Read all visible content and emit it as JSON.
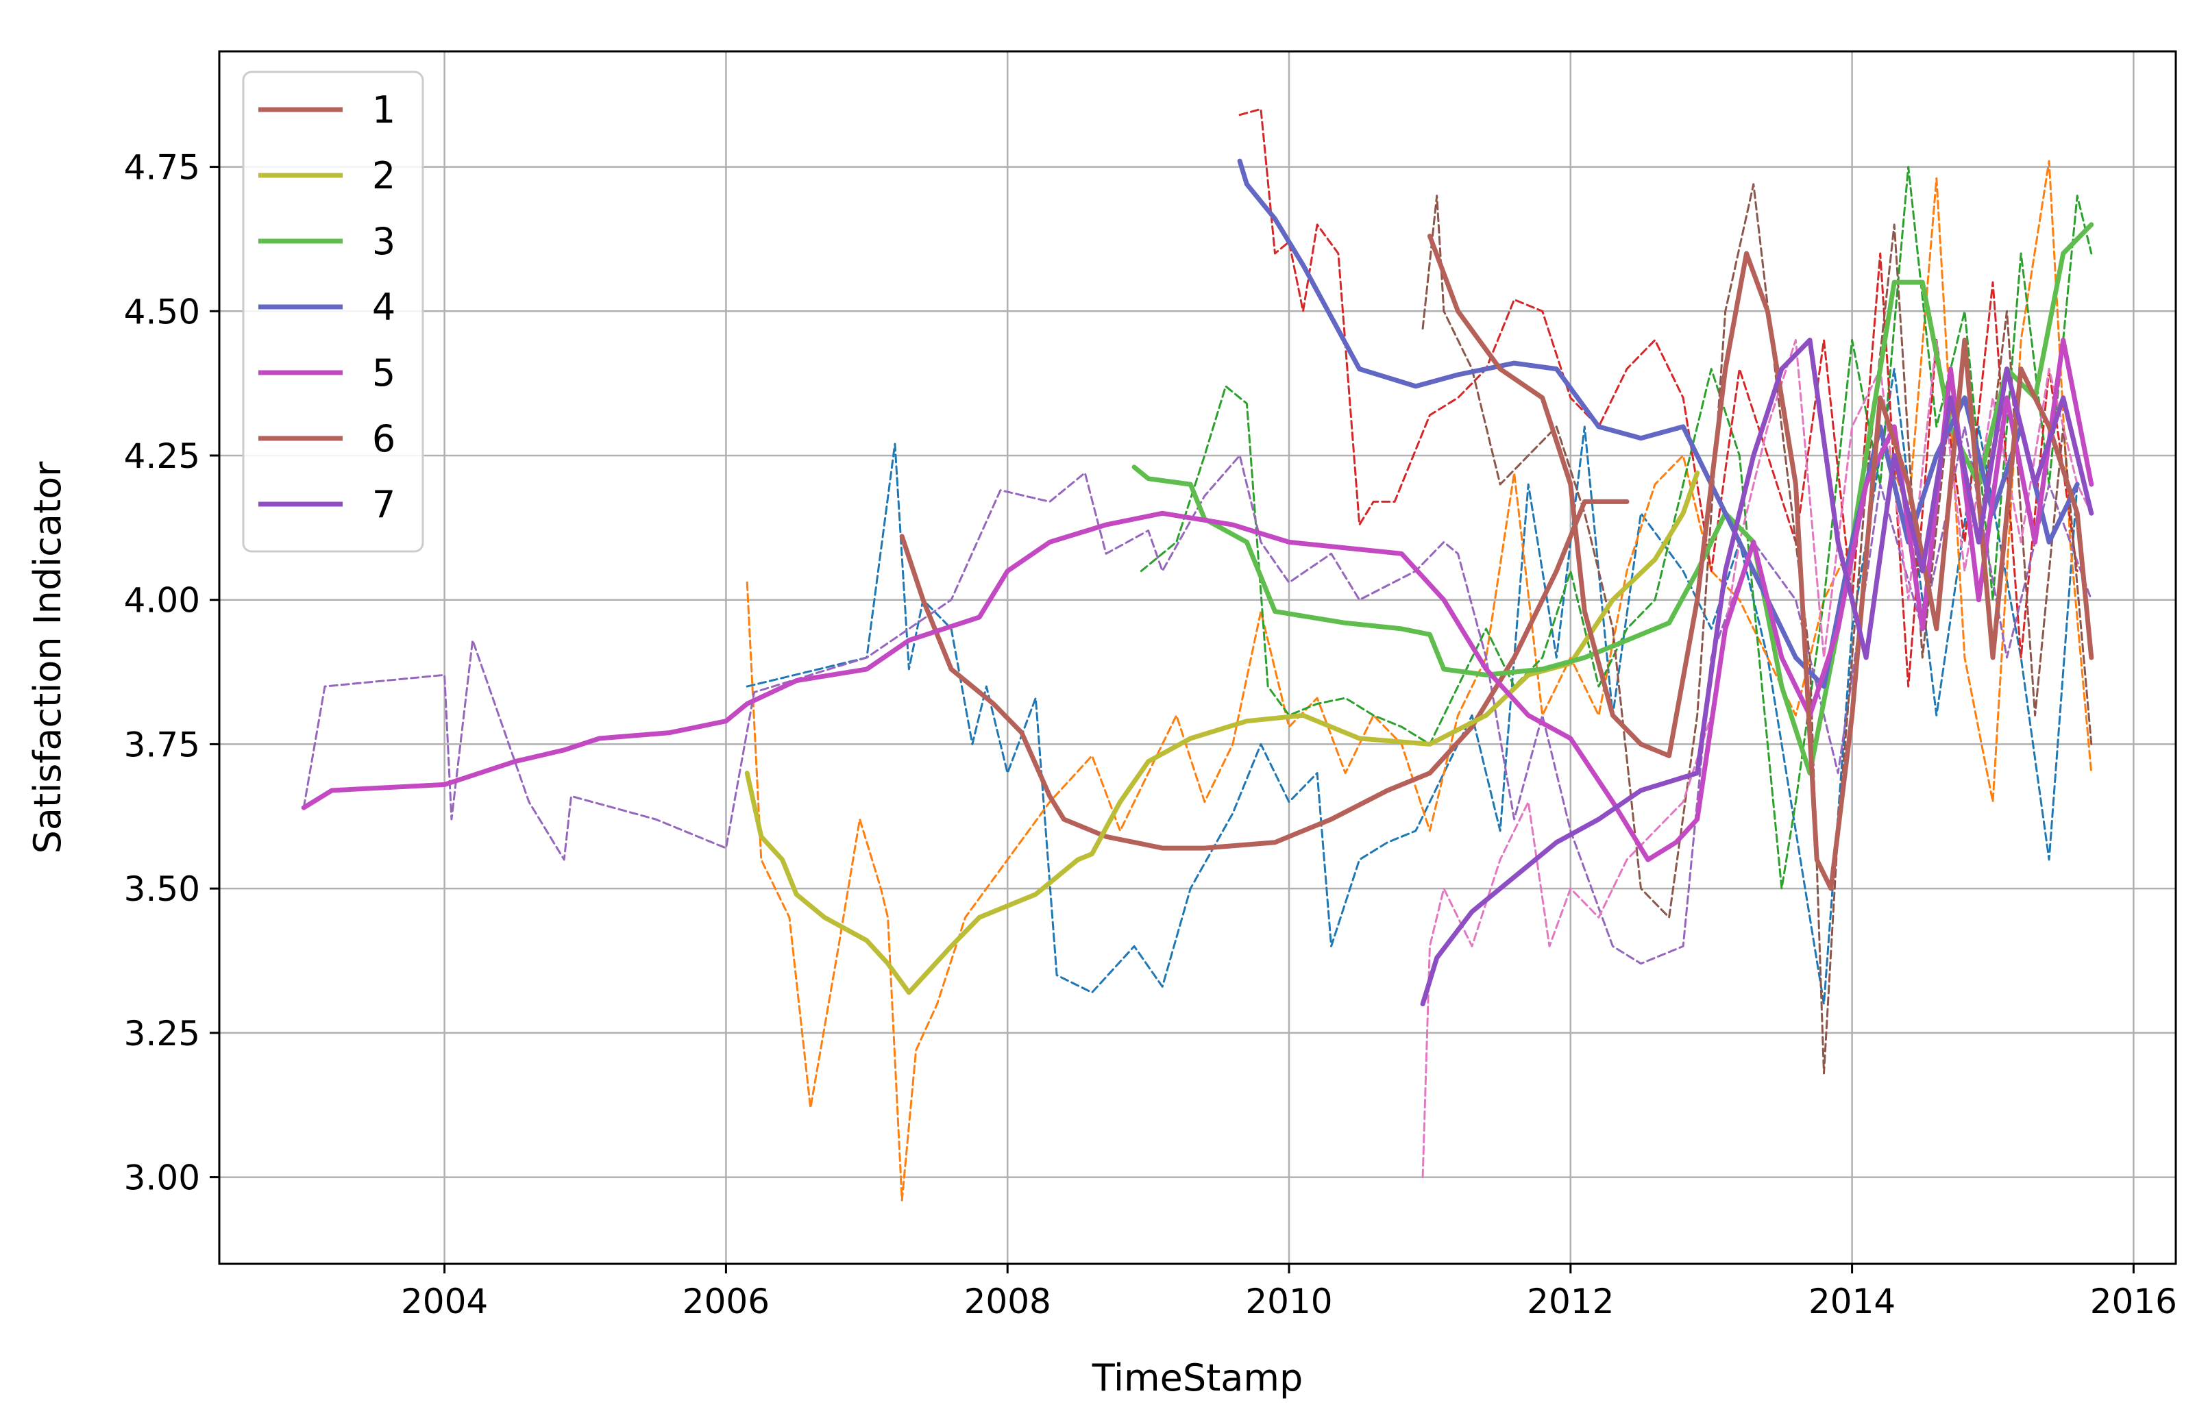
{
  "chart_data": {
    "type": "line",
    "title": "",
    "xlabel": "TimeStamp",
    "ylabel": "Satisfaction Indicator",
    "xlim": [
      2002.4,
      2016.3
    ],
    "ylim": [
      2.85,
      4.95
    ],
    "xticks": [
      2004,
      2006,
      2008,
      2010,
      2012,
      2014,
      2016
    ],
    "xtick_labels": [
      "2004",
      "2006",
      "2008",
      "2010",
      "2012",
      "2014",
      "2016"
    ],
    "yticks": [
      3.0,
      3.25,
      3.5,
      3.75,
      4.0,
      4.25,
      4.5,
      4.75
    ],
    "ytick_labels": [
      "3.00",
      "3.25",
      "3.50",
      "3.75",
      "4.00",
      "4.25",
      "4.50",
      "4.75"
    ],
    "grid": true,
    "legend_position": "top-left",
    "series": [
      {
        "name": "1",
        "style": "solid",
        "color": "#b5615a",
        "x": [
          2007.25,
          2007.4,
          2007.6,
          2007.9,
          2008.1,
          2008.3,
          2008.4,
          2008.7,
          2009.1,
          2009.4,
          2009.9,
          2010.3,
          2010.7,
          2011.0,
          2011.3,
          2011.6,
          2011.9,
          2012.1,
          2012.4
        ],
        "y": [
          4.11,
          4.0,
          3.88,
          3.82,
          3.77,
          3.66,
          3.62,
          3.59,
          3.57,
          3.57,
          3.58,
          3.62,
          3.67,
          3.7,
          3.78,
          3.9,
          4.05,
          4.17,
          4.17
        ]
      },
      {
        "name": "2",
        "style": "solid",
        "color": "#bcbd37",
        "x": [
          2006.15,
          2006.25,
          2006.4,
          2006.5,
          2006.7,
          2007.0,
          2007.15,
          2007.3,
          2007.6,
          2007.8,
          2008.2,
          2008.5,
          2008.6,
          2008.8,
          2009.0,
          2009.3,
          2009.7,
          2010.1,
          2010.5,
          2011.0,
          2011.4,
          2011.7,
          2012.0,
          2012.3,
          2012.6,
          2012.8,
          2012.9
        ],
        "y": [
          3.7,
          3.59,
          3.55,
          3.49,
          3.45,
          3.41,
          3.37,
          3.32,
          3.4,
          3.45,
          3.49,
          3.55,
          3.56,
          3.65,
          3.72,
          3.76,
          3.79,
          3.8,
          3.76,
          3.75,
          3.8,
          3.87,
          3.89,
          4.0,
          4.07,
          4.15,
          4.22
        ]
      },
      {
        "name": "3",
        "style": "solid",
        "color": "#5fbd4e",
        "x": [
          2008.9,
          2009.0,
          2009.3,
          2009.4,
          2009.7,
          2009.9,
          2010.4,
          2010.8,
          2011.0,
          2011.1,
          2011.4,
          2011.8,
          2012.1,
          2012.4,
          2012.7,
          2012.9,
          2013.1,
          2013.3,
          2013.5,
          2013.7,
          2013.9,
          2014.1,
          2014.3,
          2014.5,
          2014.7,
          2014.9,
          2015.1,
          2015.3,
          2015.5,
          2015.7
        ],
        "y": [
          4.23,
          4.21,
          4.2,
          4.14,
          4.1,
          3.98,
          3.96,
          3.95,
          3.94,
          3.88,
          3.87,
          3.88,
          3.9,
          3.93,
          3.96,
          4.05,
          4.15,
          4.1,
          3.85,
          3.7,
          3.95,
          4.25,
          4.55,
          4.55,
          4.3,
          4.2,
          4.4,
          4.35,
          4.6,
          4.65
        ]
      },
      {
        "name": "4",
        "style": "solid",
        "color": "#6267c4",
        "x": [
          2009.65,
          2009.7,
          2009.9,
          2010.1,
          2010.3,
          2010.5,
          2010.9,
          2011.2,
          2011.6,
          2011.9,
          2012.2,
          2012.5,
          2012.8,
          2013.0,
          2013.2,
          2013.4,
          2013.6,
          2013.8,
          2014.0,
          2014.2,
          2014.4,
          2014.6,
          2014.8,
          2015.0,
          2015.2,
          2015.4,
          2015.6
        ],
        "y": [
          4.76,
          4.72,
          4.66,
          4.58,
          4.49,
          4.4,
          4.37,
          4.39,
          4.41,
          4.4,
          4.3,
          4.28,
          4.3,
          4.2,
          4.1,
          4.0,
          3.9,
          3.85,
          4.1,
          4.3,
          4.1,
          4.25,
          4.35,
          4.15,
          4.3,
          4.1,
          4.2
        ]
      },
      {
        "name": "5",
        "style": "solid",
        "color": "#c349c3",
        "x": [
          2003.0,
          2003.2,
          2004.0,
          2004.5,
          2004.85,
          2005.1,
          2005.6,
          2006.0,
          2006.15,
          2006.5,
          2007.0,
          2007.3,
          2007.8,
          2008.0,
          2008.3,
          2008.7,
          2009.1,
          2009.6,
          2010.0,
          2010.4,
          2010.8,
          2011.1,
          2011.4,
          2011.7,
          2012.0,
          2012.3,
          2012.55,
          2012.75,
          2012.9,
          2013.1,
          2013.3,
          2013.5,
          2013.7,
          2013.9,
          2014.1,
          2014.3,
          2014.5,
          2014.7,
          2014.9,
          2015.1,
          2015.3,
          2015.5,
          2015.7
        ],
        "y": [
          3.64,
          3.67,
          3.68,
          3.72,
          3.74,
          3.76,
          3.77,
          3.79,
          3.82,
          3.86,
          3.88,
          3.93,
          3.97,
          4.05,
          4.1,
          4.13,
          4.15,
          4.13,
          4.1,
          4.09,
          4.08,
          4.0,
          3.88,
          3.8,
          3.76,
          3.65,
          3.55,
          3.58,
          3.62,
          3.95,
          4.1,
          3.9,
          3.8,
          3.95,
          4.2,
          4.3,
          3.95,
          4.4,
          4.0,
          4.35,
          4.1,
          4.45,
          4.2
        ]
      },
      {
        "name": "6",
        "style": "solid",
        "color": "#b5615a",
        "x": [
          2011.0,
          2011.2,
          2011.5,
          2011.8,
          2012.0,
          2012.1,
          2012.3,
          2012.5,
          2012.7,
          2012.9,
          2013.1,
          2013.25,
          2013.4,
          2013.6,
          2013.75,
          2013.85,
          2014.0,
          2014.2,
          2014.4,
          2014.6,
          2014.8,
          2015.0,
          2015.2,
          2015.4,
          2015.6,
          2015.7
        ],
        "y": [
          4.63,
          4.5,
          4.4,
          4.35,
          4.2,
          3.98,
          3.8,
          3.75,
          3.73,
          4.0,
          4.4,
          4.6,
          4.5,
          4.2,
          3.55,
          3.5,
          3.8,
          4.35,
          4.2,
          3.95,
          4.45,
          3.9,
          4.4,
          4.3,
          4.15,
          3.9
        ]
      },
      {
        "name": "7",
        "style": "solid",
        "color": "#8d4ec4",
        "x": [
          2010.95,
          2011.05,
          2011.3,
          2011.6,
          2011.9,
          2012.2,
          2012.5,
          2012.9,
          2013.1,
          2013.3,
          2013.5,
          2013.7,
          2013.9,
          2014.1,
          2014.3,
          2014.5,
          2014.7,
          2014.9,
          2015.1,
          2015.3,
          2015.5,
          2015.7
        ],
        "y": [
          3.3,
          3.38,
          3.46,
          3.52,
          3.58,
          3.62,
          3.67,
          3.7,
          4.05,
          4.25,
          4.4,
          4.45,
          4.1,
          3.9,
          4.25,
          4.05,
          4.35,
          4.1,
          4.4,
          4.2,
          4.35,
          4.15
        ]
      },
      {
        "name": "",
        "style": "dashed",
        "color": "#1f77b4",
        "x": [
          2006.15,
          2007.0,
          2007.2,
          2007.3,
          2007.4,
          2007.6,
          2007.75,
          2007.85,
          2008.0,
          2008.2,
          2008.35,
          2008.6,
          2008.9,
          2009.1,
          2009.3,
          2009.6,
          2009.8,
          2010.0,
          2010.2,
          2010.3,
          2010.5,
          2010.7,
          2010.9,
          2011.1,
          2011.3,
          2011.5,
          2011.7,
          2011.9,
          2012.1,
          2012.3,
          2012.5,
          2012.8,
          2013.0,
          2013.2,
          2013.4,
          2013.6,
          2013.8,
          2014.0,
          2014.3,
          2014.6,
          2014.9,
          2015.2,
          2015.4,
          2015.6
        ],
        "y": [
          3.85,
          3.9,
          4.27,
          3.88,
          4.0,
          3.95,
          3.75,
          3.85,
          3.7,
          3.83,
          3.35,
          3.32,
          3.4,
          3.33,
          3.5,
          3.63,
          3.75,
          3.65,
          3.7,
          3.4,
          3.55,
          3.58,
          3.6,
          3.7,
          3.8,
          3.6,
          4.2,
          3.9,
          4.3,
          3.8,
          4.15,
          4.05,
          3.95,
          4.1,
          3.9,
          3.6,
          3.3,
          3.95,
          4.4,
          3.8,
          4.3,
          3.9,
          3.55,
          4.2
        ]
      },
      {
        "name": "",
        "style": "dashed",
        "color": "#ff7f0e",
        "x": [
          2006.15,
          2006.25,
          2006.45,
          2006.6,
          2006.8,
          2006.95,
          2007.1,
          2007.15,
          2007.25,
          2007.35,
          2007.5,
          2007.7,
          2008.0,
          2008.3,
          2008.6,
          2008.8,
          2009.0,
          2009.2,
          2009.4,
          2009.6,
          2009.8,
          2010.0,
          2010.2,
          2010.4,
          2010.6,
          2010.8,
          2011.0,
          2011.2,
          2011.4,
          2011.6,
          2011.8,
          2012.0,
          2012.2,
          2012.4,
          2012.6,
          2012.8,
          2013.0,
          2013.2,
          2013.4,
          2013.6,
          2013.8,
          2014.0,
          2014.2,
          2014.4,
          2014.6,
          2014.8,
          2015.0,
          2015.2,
          2015.4,
          2015.55,
          2015.7
        ],
        "y": [
          4.03,
          3.55,
          3.45,
          3.12,
          3.4,
          3.62,
          3.5,
          3.45,
          2.96,
          3.22,
          3.3,
          3.45,
          3.55,
          3.65,
          3.73,
          3.6,
          3.7,
          3.8,
          3.65,
          3.75,
          3.98,
          3.78,
          3.83,
          3.7,
          3.8,
          3.75,
          3.6,
          3.8,
          3.9,
          4.22,
          3.8,
          3.9,
          3.8,
          4.05,
          4.2,
          4.25,
          4.05,
          4.0,
          3.9,
          3.8,
          4.0,
          4.1,
          4.3,
          4.15,
          4.73,
          3.9,
          3.65,
          4.45,
          4.76,
          4.1,
          3.7
        ]
      },
      {
        "name": "",
        "style": "dashed",
        "color": "#2ca02c",
        "x": [
          2008.95,
          2009.2,
          2009.4,
          2009.55,
          2009.7,
          2009.85,
          2010.0,
          2010.2,
          2010.4,
          2010.6,
          2010.8,
          2011.0,
          2011.2,
          2011.4,
          2011.6,
          2011.8,
          2012.0,
          2012.2,
          2012.4,
          2012.6,
          2012.8,
          2013.0,
          2013.2,
          2013.4,
          2013.5,
          2013.6,
          2013.8,
          2014.0,
          2014.2,
          2014.4,
          2014.6,
          2014.8,
          2015.0,
          2015.2,
          2015.4,
          2015.6,
          2015.7
        ],
        "y": [
          4.05,
          4.1,
          4.25,
          4.37,
          4.34,
          3.85,
          3.8,
          3.82,
          3.83,
          3.8,
          3.78,
          3.75,
          3.85,
          3.95,
          3.85,
          3.9,
          4.05,
          3.85,
          3.95,
          4.0,
          4.2,
          4.4,
          4.25,
          3.75,
          3.5,
          3.65,
          4.0,
          4.45,
          4.2,
          4.75,
          4.3,
          4.5,
          4.0,
          4.6,
          4.2,
          4.7,
          4.6
        ]
      },
      {
        "name": "",
        "style": "dashed",
        "color": "#d62728",
        "x": [
          2009.65,
          2009.8,
          2009.9,
          2010.0,
          2010.1,
          2010.2,
          2010.35,
          2010.5,
          2010.6,
          2010.75,
          2011.0,
          2011.2,
          2011.4,
          2011.6,
          2011.8,
          2012.0,
          2012.2,
          2012.4,
          2012.6,
          2012.8,
          2013.0,
          2013.2,
          2013.4,
          2013.6,
          2013.8,
          2014.0,
          2014.2,
          2014.4,
          2014.6,
          2014.8,
          2015.0,
          2015.2,
          2015.4,
          2015.6
        ],
        "y": [
          4.84,
          4.85,
          4.6,
          4.62,
          4.5,
          4.65,
          4.6,
          4.13,
          4.17,
          4.17,
          4.32,
          4.35,
          4.4,
          4.52,
          4.5,
          4.35,
          4.3,
          4.4,
          4.45,
          4.35,
          4.05,
          4.4,
          4.25,
          4.1,
          4.45,
          4.0,
          4.6,
          3.85,
          4.45,
          4.1,
          4.55,
          3.9,
          4.4,
          4.05
        ]
      },
      {
        "name": "",
        "style": "dashed",
        "color": "#9467bd",
        "x": [
          2003.0,
          2003.15,
          2004.0,
          2004.05,
          2004.2,
          2004.6,
          2004.85,
          2004.9,
          2005.5,
          2006.0,
          2006.2,
          2006.6,
          2007.0,
          2007.3,
          2007.6,
          2007.95,
          2008.3,
          2008.55,
          2008.7,
          2009.0,
          2009.1,
          2009.4,
          2009.65,
          2009.8,
          2010.0,
          2010.3,
          2010.5,
          2010.9,
          2011.1,
          2011.2,
          2011.4,
          2011.6,
          2011.8,
          2012.0,
          2012.3,
          2012.5,
          2012.8,
          2013.0,
          2013.3,
          2013.6,
          2013.9,
          2014.2,
          2014.5,
          2014.8,
          2015.1,
          2015.4,
          2015.7
        ],
        "y": [
          3.64,
          3.85,
          3.87,
          3.62,
          3.93,
          3.65,
          3.55,
          3.66,
          3.62,
          3.57,
          3.84,
          3.87,
          3.9,
          3.95,
          4.0,
          4.19,
          4.17,
          4.22,
          4.08,
          4.12,
          4.05,
          4.18,
          4.25,
          4.1,
          4.03,
          4.08,
          4.0,
          4.05,
          4.1,
          4.08,
          3.9,
          3.62,
          3.8,
          3.6,
          3.4,
          3.37,
          3.4,
          3.9,
          4.1,
          4.0,
          3.7,
          4.2,
          3.95,
          4.3,
          3.9,
          4.2,
          4.0
        ]
      },
      {
        "name": "",
        "style": "dashed",
        "color": "#8c564b",
        "x": [
          2010.95,
          2011.05,
          2011.1,
          2011.3,
          2011.5,
          2011.7,
          2011.9,
          2012.1,
          2012.3,
          2012.5,
          2012.7,
          2012.9,
          2013.1,
          2013.3,
          2013.5,
          2013.7,
          2013.8,
          2013.9,
          2014.1,
          2014.3,
          2014.5,
          2014.7,
          2014.9,
          2015.1,
          2015.3,
          2015.5,
          2015.7
        ],
        "y": [
          4.47,
          4.7,
          4.5,
          4.4,
          4.2,
          4.25,
          4.3,
          4.15,
          3.95,
          3.5,
          3.45,
          3.8,
          4.5,
          4.72,
          4.3,
          3.9,
          3.18,
          3.6,
          4.2,
          4.65,
          3.9,
          4.35,
          4.1,
          4.5,
          3.8,
          4.3,
          3.75
        ]
      },
      {
        "name": "",
        "style": "dashed",
        "color": "#e377c2",
        "x": [
          2010.95,
          2011.0,
          2011.1,
          2011.3,
          2011.5,
          2011.7,
          2011.85,
          2012.0,
          2012.2,
          2012.4,
          2012.6,
          2012.8,
          2013.0,
          2013.2,
          2013.4,
          2013.6,
          2013.8,
          2014.0,
          2014.2,
          2014.4,
          2014.6,
          2014.8,
          2015.0,
          2015.2,
          2015.4,
          2015.6,
          2015.7
        ],
        "y": [
          3.0,
          3.4,
          3.5,
          3.4,
          3.55,
          3.65,
          3.4,
          3.5,
          3.45,
          3.55,
          3.6,
          3.65,
          3.8,
          4.1,
          4.3,
          4.45,
          3.9,
          4.3,
          4.4,
          4.0,
          4.45,
          4.05,
          4.35,
          4.1,
          4.4,
          4.2,
          4.15
        ]
      }
    ]
  }
}
